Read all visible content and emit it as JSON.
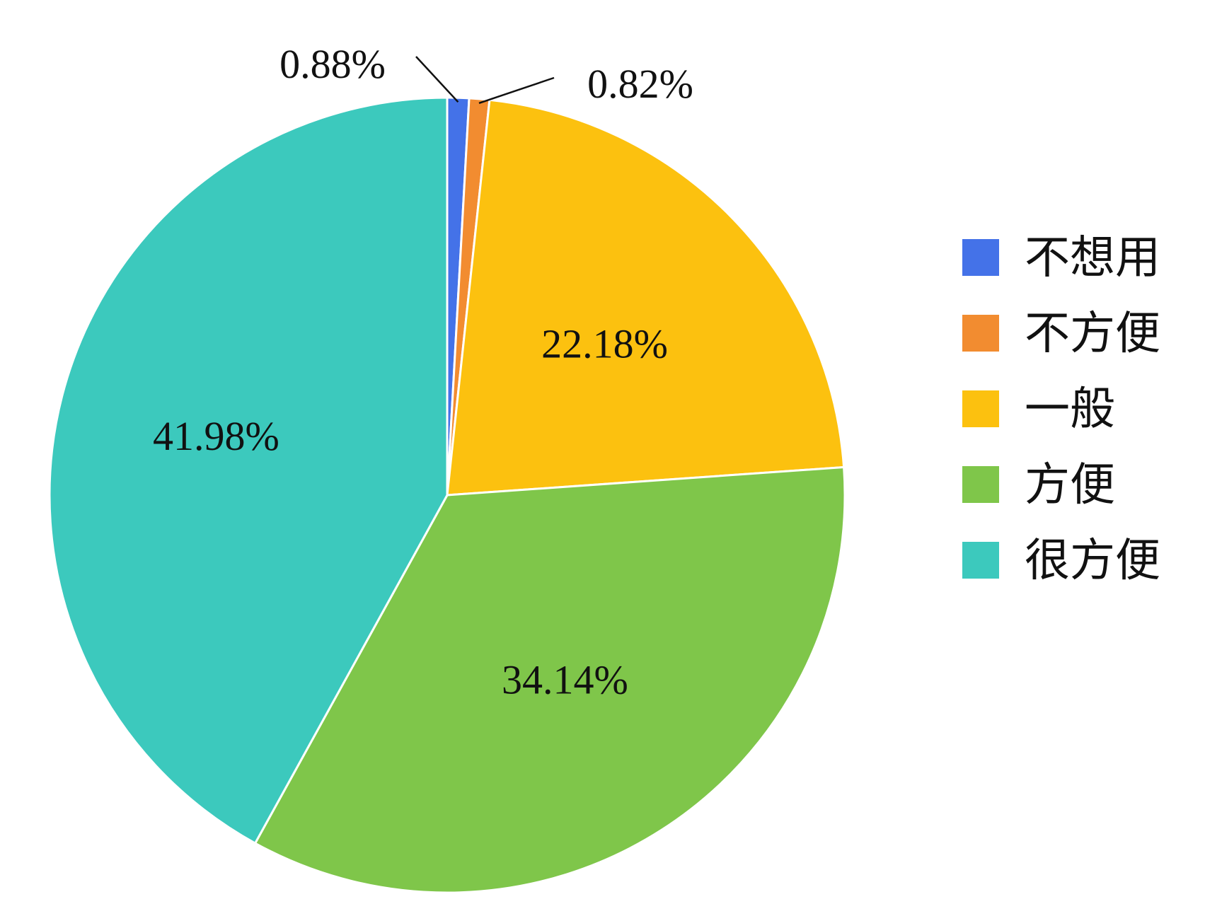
{
  "chart_data": {
    "type": "pie",
    "categories": [
      "不想用",
      "不方便",
      "一般",
      "方便",
      "很方便"
    ],
    "values": [
      0.88,
      0.82,
      22.18,
      34.14,
      41.98
    ],
    "value_labels": [
      "0.88%",
      "0.82%",
      "22.18%",
      "34.14%",
      "41.98%"
    ],
    "colors": [
      "#4472E8",
      "#F28C30",
      "#FCC10F",
      "#7FC64A",
      "#3CC9BD"
    ],
    "start_angle_deg": 0,
    "direction": "clockwise",
    "legend_position": "right",
    "title": ""
  }
}
